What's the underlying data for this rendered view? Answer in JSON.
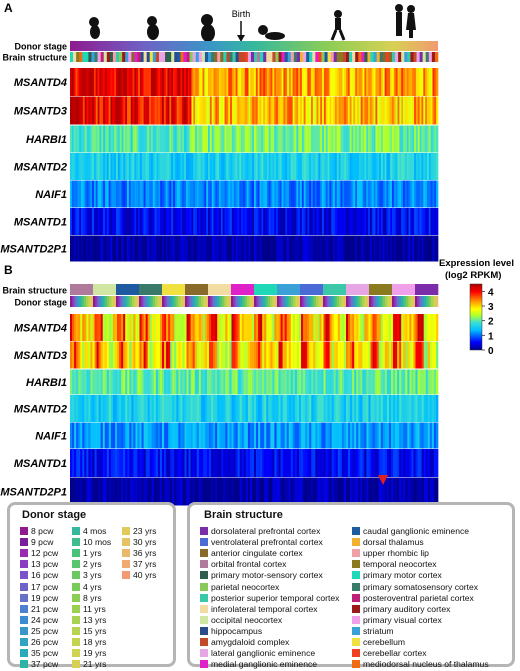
{
  "chart_data": [
    {
      "panel": "A",
      "type": "heatmap",
      "timeline": {
        "label": "Birth"
      },
      "annotation_rows": [
        "Donor stage",
        "Brain structure"
      ],
      "genes": [
        "MSANTD4",
        "MSANTD3",
        "HARBI1",
        "MSANTD2",
        "NAIF1",
        "MSANTD1",
        "MSANTD2P1"
      ],
      "gene_mean_log2_rpkm": [
        3.7,
        3.6,
        2.0,
        1.6,
        1.1,
        0.5,
        0.1
      ]
    },
    {
      "panel": "B",
      "type": "heatmap",
      "annotation_rows": [
        "Brain structure",
        "Donor stage"
      ],
      "genes": [
        "MSANTD4",
        "MSANTD3",
        "HARBI1",
        "MSANTD2",
        "NAIF1",
        "MSANTD1",
        "MSANTD2P1"
      ],
      "gene_mean_log2_rpkm": [
        3.1,
        3.0,
        2.0,
        1.6,
        1.2,
        0.5,
        0.1
      ]
    }
  ],
  "colorbar": {
    "title_line1": "Expression level",
    "title_line2": "(log2 RPKM)",
    "ticks": [
      "4",
      "3",
      "2",
      "1",
      "0"
    ],
    "range": [
      0,
      4.5
    ],
    "colors": [
      "#00008b",
      "#0000ff",
      "#00bfff",
      "#40e0d0",
      "#adff2f",
      "#ffff00",
      "#ff8c00",
      "#ff0000",
      "#b00000"
    ]
  },
  "legend_donor": {
    "title": "Donor stage",
    "items": [
      {
        "label": "8 pcw",
        "color": "#8e1a8e"
      },
      {
        "label": "9 pcw",
        "color": "#7a1f9a"
      },
      {
        "label": "12 pcw",
        "color": "#9a2bb0"
      },
      {
        "label": "13 pcw",
        "color": "#8a3dc0"
      },
      {
        "label": "16 pcw",
        "color": "#7b52c9"
      },
      {
        "label": "17 pcw",
        "color": "#6f62c6"
      },
      {
        "label": "19 pcw",
        "color": "#6673c9"
      },
      {
        "label": "21 pcw",
        "color": "#4f7fcf"
      },
      {
        "label": "24 pcw",
        "color": "#3c8bd0"
      },
      {
        "label": "25 pcw",
        "color": "#3a96c7"
      },
      {
        "label": "26 pcw",
        "color": "#33a3c2"
      },
      {
        "label": "35 pcw",
        "color": "#2aa9b6"
      },
      {
        "label": "37 pcw",
        "color": "#2bb3a7"
      },
      {
        "label": "4 mos",
        "color": "#35b89d"
      },
      {
        "label": "10 mos",
        "color": "#3fbd8d"
      },
      {
        "label": "1 yrs",
        "color": "#4bc27c"
      },
      {
        "label": "2 yrs",
        "color": "#5ac56e"
      },
      {
        "label": "3 yrs",
        "color": "#6ac863"
      },
      {
        "label": "4 yrs",
        "color": "#7bcb5a"
      },
      {
        "label": "8 yrs",
        "color": "#8ccd55"
      },
      {
        "label": "11 yrs",
        "color": "#9ccf52"
      },
      {
        "label": "13 yrs",
        "color": "#aad150"
      },
      {
        "label": "15 yrs",
        "color": "#b8d34f"
      },
      {
        "label": "18 yrs",
        "color": "#c5d450"
      },
      {
        "label": "19 yrs",
        "color": "#cfd352"
      },
      {
        "label": "21 yrs",
        "color": "#d8d055"
      },
      {
        "label": "23 yrs",
        "color": "#e0cb5a"
      },
      {
        "label": "30 yrs",
        "color": "#e6c362"
      },
      {
        "label": "36 yrs",
        "color": "#ebb86b"
      },
      {
        "label": "37 yrs",
        "color": "#efaa72"
      },
      {
        "label": "40 yrs",
        "color": "#f19a70"
      }
    ]
  },
  "legend_structure": {
    "title": "Brain structure",
    "items": [
      {
        "label": "dorsolateral prefrontal cortex",
        "color": "#7b2ca8"
      },
      {
        "label": "ventrolateral prefrontal cortex",
        "color": "#4a6ad6"
      },
      {
        "label": "anterior cingulate cortex",
        "color": "#8a6a2a"
      },
      {
        "label": "orbital frontal cortex",
        "color": "#b07a9c"
      },
      {
        "label": "primary motor-sensory cortex",
        "color": "#2e5e4e"
      },
      {
        "label": "parietal neocortex",
        "color": "#8ac85a"
      },
      {
        "label": "posterior superior temporal cortex",
        "color": "#3ac8a8"
      },
      {
        "label": "inferolateral temporal cortex",
        "color": "#f3dca2"
      },
      {
        "label": "occipital neocortex",
        "color": "#d2e6a4"
      },
      {
        "label": "hippocampus",
        "color": "#2a4a8a"
      },
      {
        "label": "amygdaloid complex",
        "color": "#c04a2a"
      },
      {
        "label": "lateral ganglionic eminence",
        "color": "#e6a6e6"
      },
      {
        "label": "medial ganglionic eminence",
        "color": "#e020c8"
      },
      {
        "label": "caudal ganglionic eminence",
        "color": "#1e5aa0"
      },
      {
        "label": "dorsal thalamus",
        "color": "#f0b030"
      },
      {
        "label": "upper rhombic lip",
        "color": "#f2a0a8"
      },
      {
        "label": "temporal neocortex",
        "color": "#8a7a20"
      },
      {
        "label": "primary motor cortex",
        "color": "#20d8b8"
      },
      {
        "label": "primary somatosensory cortex",
        "color": "#3a7a6a"
      },
      {
        "label": "posteroventral parietal cortex",
        "color": "#c0207a"
      },
      {
        "label": "primary auditory cortex",
        "color": "#9a1a1a"
      },
      {
        "label": "primary visual cortex",
        "color": "#f0a0e8"
      },
      {
        "label": "striatum",
        "color": "#3aa0d8"
      },
      {
        "label": "cerebellum",
        "color": "#f0e040"
      },
      {
        "label": "cerebellar cortex",
        "color": "#f04020"
      },
      {
        "label": "mediodorsal nucleus of thalamus",
        "color": "#f06a10"
      }
    ]
  },
  "panel_labels": {
    "a": "A",
    "b": "B"
  }
}
